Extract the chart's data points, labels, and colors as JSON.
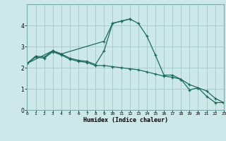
{
  "xlabel": "Humidex (Indice chaleur)",
  "bg_color": "#cce8e8",
  "grid_color": "#aacccc",
  "line_color": "#1a6b5a",
  "x_min": 0,
  "x_max": 23,
  "y_min": 0,
  "y_max": 5,
  "series1_x": [
    0,
    1,
    2,
    3,
    4,
    5,
    6,
    7,
    8,
    9,
    10,
    11,
    12,
    13,
    14,
    15,
    16,
    17,
    18,
    19,
    20,
    21,
    22,
    23
  ],
  "series1_y": [
    2.2,
    2.55,
    2.5,
    2.8,
    2.65,
    2.45,
    2.35,
    2.3,
    2.15,
    2.8,
    4.1,
    4.2,
    4.3,
    4.1,
    3.5,
    2.6,
    1.65,
    1.65,
    1.45,
    0.95,
    1.05,
    0.65,
    0.35,
    0.35
  ],
  "series2_x": [
    0,
    1,
    2,
    3,
    4,
    5,
    6,
    7,
    8,
    9,
    10,
    11,
    12,
    13,
    14,
    15,
    16,
    17,
    18,
    19,
    20,
    21,
    22,
    23
  ],
  "series2_y": [
    2.2,
    2.5,
    2.45,
    2.75,
    2.6,
    2.4,
    2.3,
    2.25,
    2.1,
    2.1,
    2.05,
    2.0,
    1.95,
    1.9,
    1.8,
    1.7,
    1.6,
    1.55,
    1.45,
    1.2,
    1.05,
    0.9,
    0.55,
    0.35
  ],
  "series3_x": [
    0,
    3,
    4,
    9,
    10,
    11,
    12
  ],
  "series3_y": [
    2.2,
    2.8,
    2.65,
    3.25,
    4.1,
    4.2,
    4.3
  ],
  "marker": "+"
}
